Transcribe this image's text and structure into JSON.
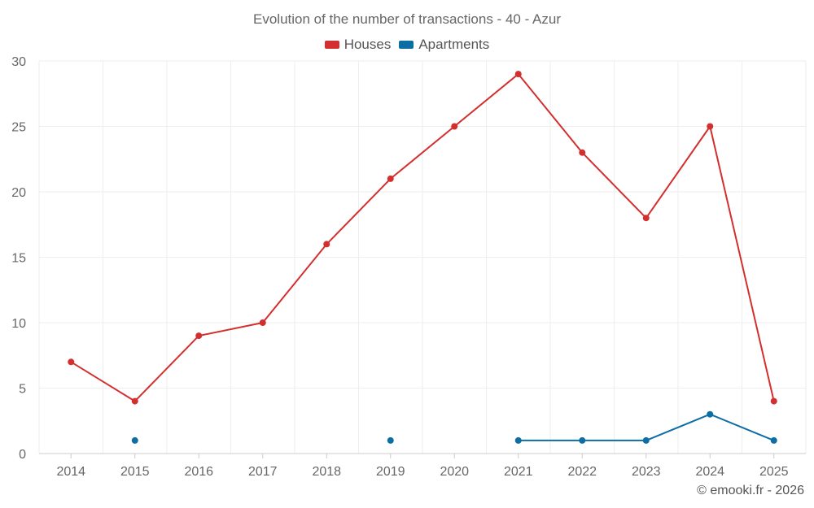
{
  "chart_data": {
    "type": "line",
    "title": "Evolution of the number of transactions - 40 - Azur",
    "categories": [
      "2014",
      "2015",
      "2016",
      "2017",
      "2018",
      "2019",
      "2020",
      "2021",
      "2022",
      "2023",
      "2024",
      "2025"
    ],
    "series": [
      {
        "name": "Houses",
        "color": "#d32f2f",
        "values": [
          7,
          4,
          9,
          10,
          16,
          21,
          25,
          29,
          23,
          18,
          25,
          4
        ]
      },
      {
        "name": "Apartments",
        "color": "#0d6ea3",
        "values": [
          null,
          1,
          null,
          null,
          null,
          1,
          null,
          1,
          1,
          1,
          3,
          1
        ]
      }
    ],
    "ylim": [
      0,
      30
    ],
    "yticks": [
      0,
      5,
      10,
      15,
      20,
      25,
      30
    ],
    "xlabel": "",
    "ylabel": "",
    "grid": true,
    "legend": "top-center"
  },
  "credit": "© emooki.fr - 2026"
}
